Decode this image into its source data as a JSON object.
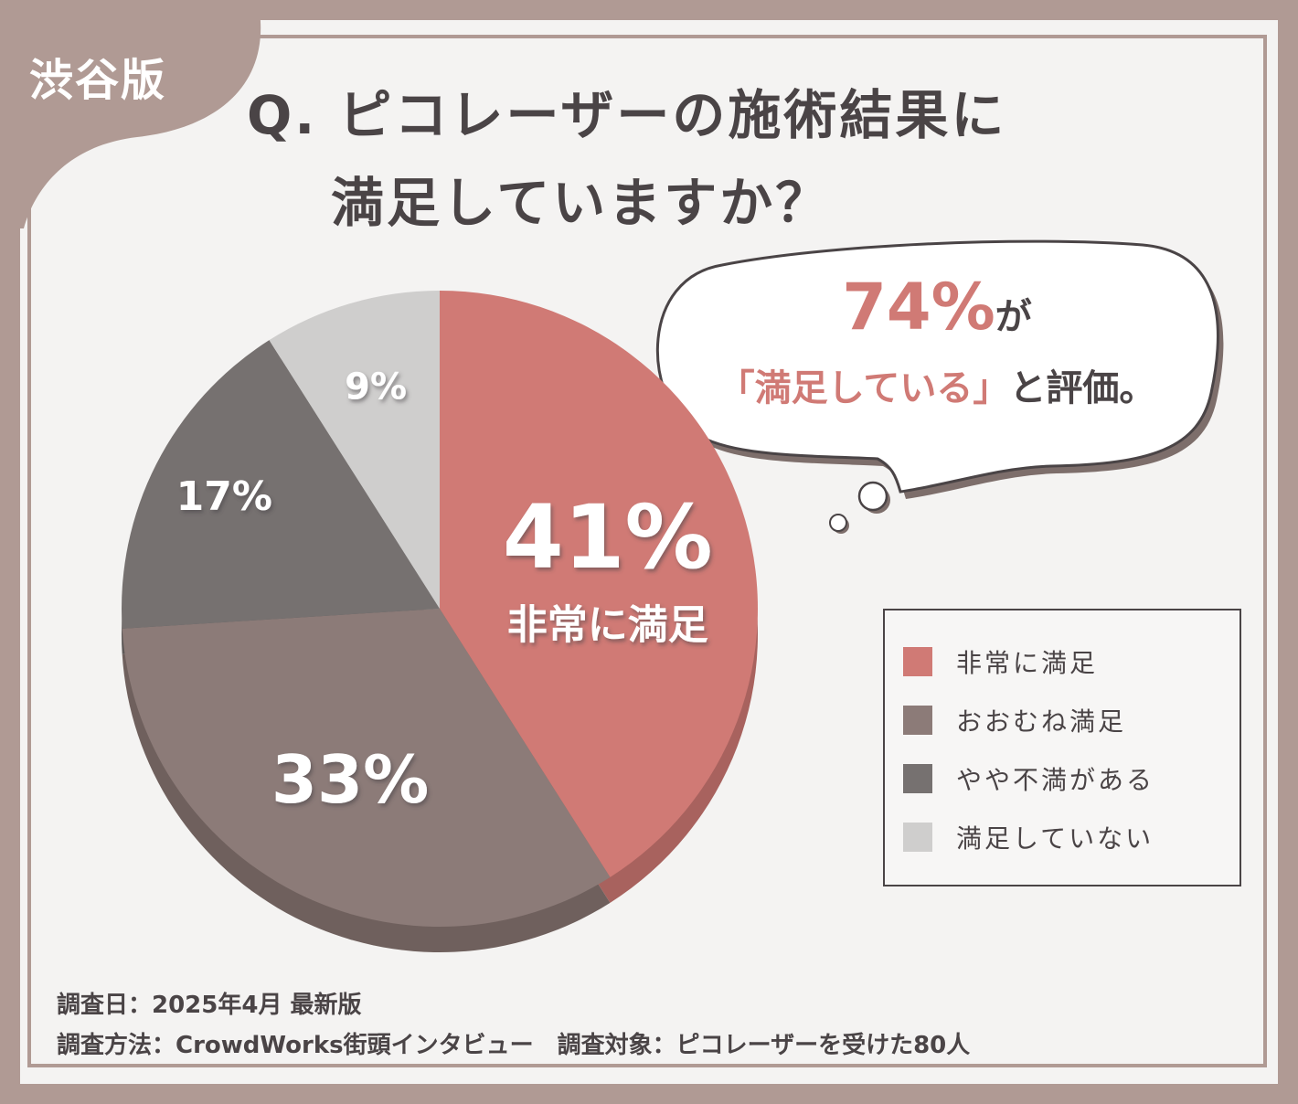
{
  "region_tag": "渋谷版",
  "title": {
    "line1": "Q. ピコレーザーの施術結果に",
    "line2": "満足していますか？"
  },
  "callout": {
    "percent": "74%",
    "suffix": "が",
    "quote": "「満足している」",
    "rest": "と評価。"
  },
  "footer": {
    "line1": "調査日：2025年4月 最新版",
    "line2": "調査方法：CrowdWorks街頭インタビュー　調査対象：ピコレーザーを受けた80人"
  },
  "colors": {
    "frame": "#b09a94",
    "very_satisfied": "#d07a75",
    "mostly_satisfied": "#8c7b78",
    "somewhat_dissatisfied": "#767170",
    "not_satisfied": "#cfcecd",
    "text": "#4a4446"
  },
  "chart_data": {
    "type": "pie",
    "title": "",
    "categories": [
      "非常に満足",
      "おおむね満足",
      "やや不満がある",
      "満足していない"
    ],
    "values": [
      41,
      33,
      17,
      9
    ],
    "value_labels": [
      "41%",
      "33%",
      "17%",
      "9%"
    ],
    "slice_inner_label": "非常に満足",
    "colors": [
      "#d07a75",
      "#8c7b78",
      "#767170",
      "#cfcecd"
    ],
    "legend_position": "right"
  }
}
